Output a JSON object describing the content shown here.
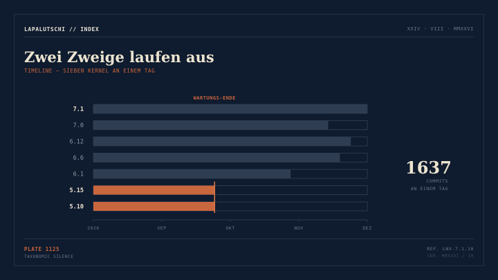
{
  "header": {
    "brand": "LAPALUTSCHI // INDEX",
    "date": "XXIV · VIII · MMXXVI"
  },
  "title": "Zwei Zweige laufen aus",
  "subtitle": "TIMELINE — SIEBEN KERNEL AN EINEM TAG",
  "stat": {
    "value": "1637",
    "label_line1": "COMMITS",
    "label_line2": "AN EINEM TAG"
  },
  "footer": {
    "plate": "PLATE 1125",
    "plate_sub": "TAXONOMIC SILENCE",
    "ref": "REF. LNX-7.1.10",
    "ser": "SER. MMXXVI / 10"
  },
  "colors": {
    "background": "#0f1b2e",
    "bar_active": "#2f3d52",
    "bar_track": "#0f1b2e",
    "bar_border": "#2a3a52",
    "accent": "#c8663e",
    "text_strong": "#ece4d0",
    "text_muted": "#6b7788"
  },
  "chart_data": {
    "type": "bar",
    "orientation": "horizontal",
    "title": "",
    "annotation": "WARTUNGS-ENDE",
    "x_ticks": [
      "2026",
      "SEP",
      "OKT",
      "NOV",
      "DEZ"
    ],
    "xlim": [
      0,
      4
    ],
    "marker_x": 1.77,
    "categories": [
      "7.1",
      "7.0",
      "6.12",
      "6.6",
      "6.1",
      "5.15",
      "5.10"
    ],
    "values": [
      4.0,
      3.43,
      3.76,
      3.6,
      2.88,
      1.77,
      1.77
    ],
    "highlight": [
      false,
      false,
      false,
      false,
      false,
      true,
      true
    ],
    "bold": [
      true,
      false,
      false,
      false,
      false,
      true,
      true
    ]
  }
}
